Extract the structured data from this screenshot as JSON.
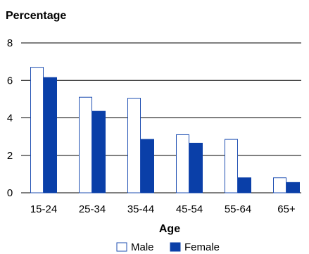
{
  "chart_data": {
    "type": "bar",
    "title": "",
    "ylabel": "Percentage",
    "xlabel": "Age",
    "categories": [
      "15-24",
      "25-34",
      "35-44",
      "45-54",
      "55-64",
      "65+"
    ],
    "series": [
      {
        "name": "Male",
        "values": [
          6.7,
          5.1,
          5.05,
          3.1,
          2.85,
          0.8
        ],
        "color": "#ffffff",
        "stroke": "#1f4fb2"
      },
      {
        "name": "Female",
        "values": [
          6.15,
          4.35,
          2.85,
          2.65,
          0.8,
          0.55
        ],
        "color": "#0a3fa8",
        "stroke": "#0a3fa8"
      }
    ],
    "yticks": [
      "0",
      "2",
      "4",
      "6",
      "8"
    ],
    "ylim": [
      0,
      8
    ],
    "grid": true,
    "legend_position": "bottom-center"
  }
}
